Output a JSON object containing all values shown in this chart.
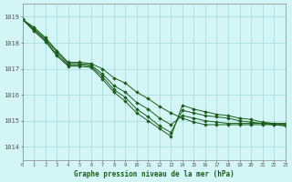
{
  "title": "Graphe pression niveau de la mer (hPa)",
  "background_color": "#d4f5f5",
  "grid_color": "#aadddd",
  "line_color": "#1a5c1a",
  "marker_color": "#1a5c1a",
  "xlim": [
    0,
    23
  ],
  "ylim": [
    1013.5,
    1019.5
  ],
  "yticks": [
    1014,
    1015,
    1016,
    1017,
    1018,
    1019
  ],
  "xticks": [
    0,
    1,
    2,
    3,
    4,
    5,
    6,
    7,
    8,
    9,
    10,
    11,
    12,
    13,
    14,
    15,
    16,
    17,
    18,
    19,
    20,
    21,
    22,
    23
  ],
  "series": [
    [
      1018.9,
      1018.6,
      1018.2,
      1017.7,
      1017.25,
      1017.25,
      1017.2,
      1017.0,
      1016.65,
      1016.45,
      1016.1,
      1015.85,
      1015.55,
      1015.3,
      1015.1,
      1014.95,
      1014.85,
      1014.85,
      1014.85,
      1014.85,
      1014.85,
      1014.85,
      1014.85,
      1014.85
    ],
    [
      1018.9,
      1018.55,
      1018.15,
      1017.65,
      1017.2,
      1017.2,
      1017.15,
      1016.8,
      1016.35,
      1016.1,
      1015.7,
      1015.45,
      1015.1,
      1014.85,
      1015.2,
      1015.1,
      1015.0,
      1014.95,
      1014.9,
      1014.9,
      1014.9,
      1014.9,
      1014.9,
      1014.9
    ],
    [
      1018.9,
      1018.5,
      1018.1,
      1017.55,
      1017.15,
      1017.15,
      1017.1,
      1016.7,
      1016.2,
      1015.9,
      1015.45,
      1015.15,
      1014.8,
      1014.55,
      1015.4,
      1015.3,
      1015.2,
      1015.15,
      1015.1,
      1015.0,
      1014.95,
      1014.9,
      1014.85,
      1014.8
    ],
    [
      1018.9,
      1018.45,
      1018.05,
      1017.5,
      1017.1,
      1017.1,
      1017.05,
      1016.6,
      1016.1,
      1015.75,
      1015.3,
      1015.0,
      1014.7,
      1014.4,
      1015.6,
      1015.45,
      1015.35,
      1015.25,
      1015.2,
      1015.1,
      1015.05,
      1014.95,
      1014.9,
      1014.85
    ]
  ]
}
